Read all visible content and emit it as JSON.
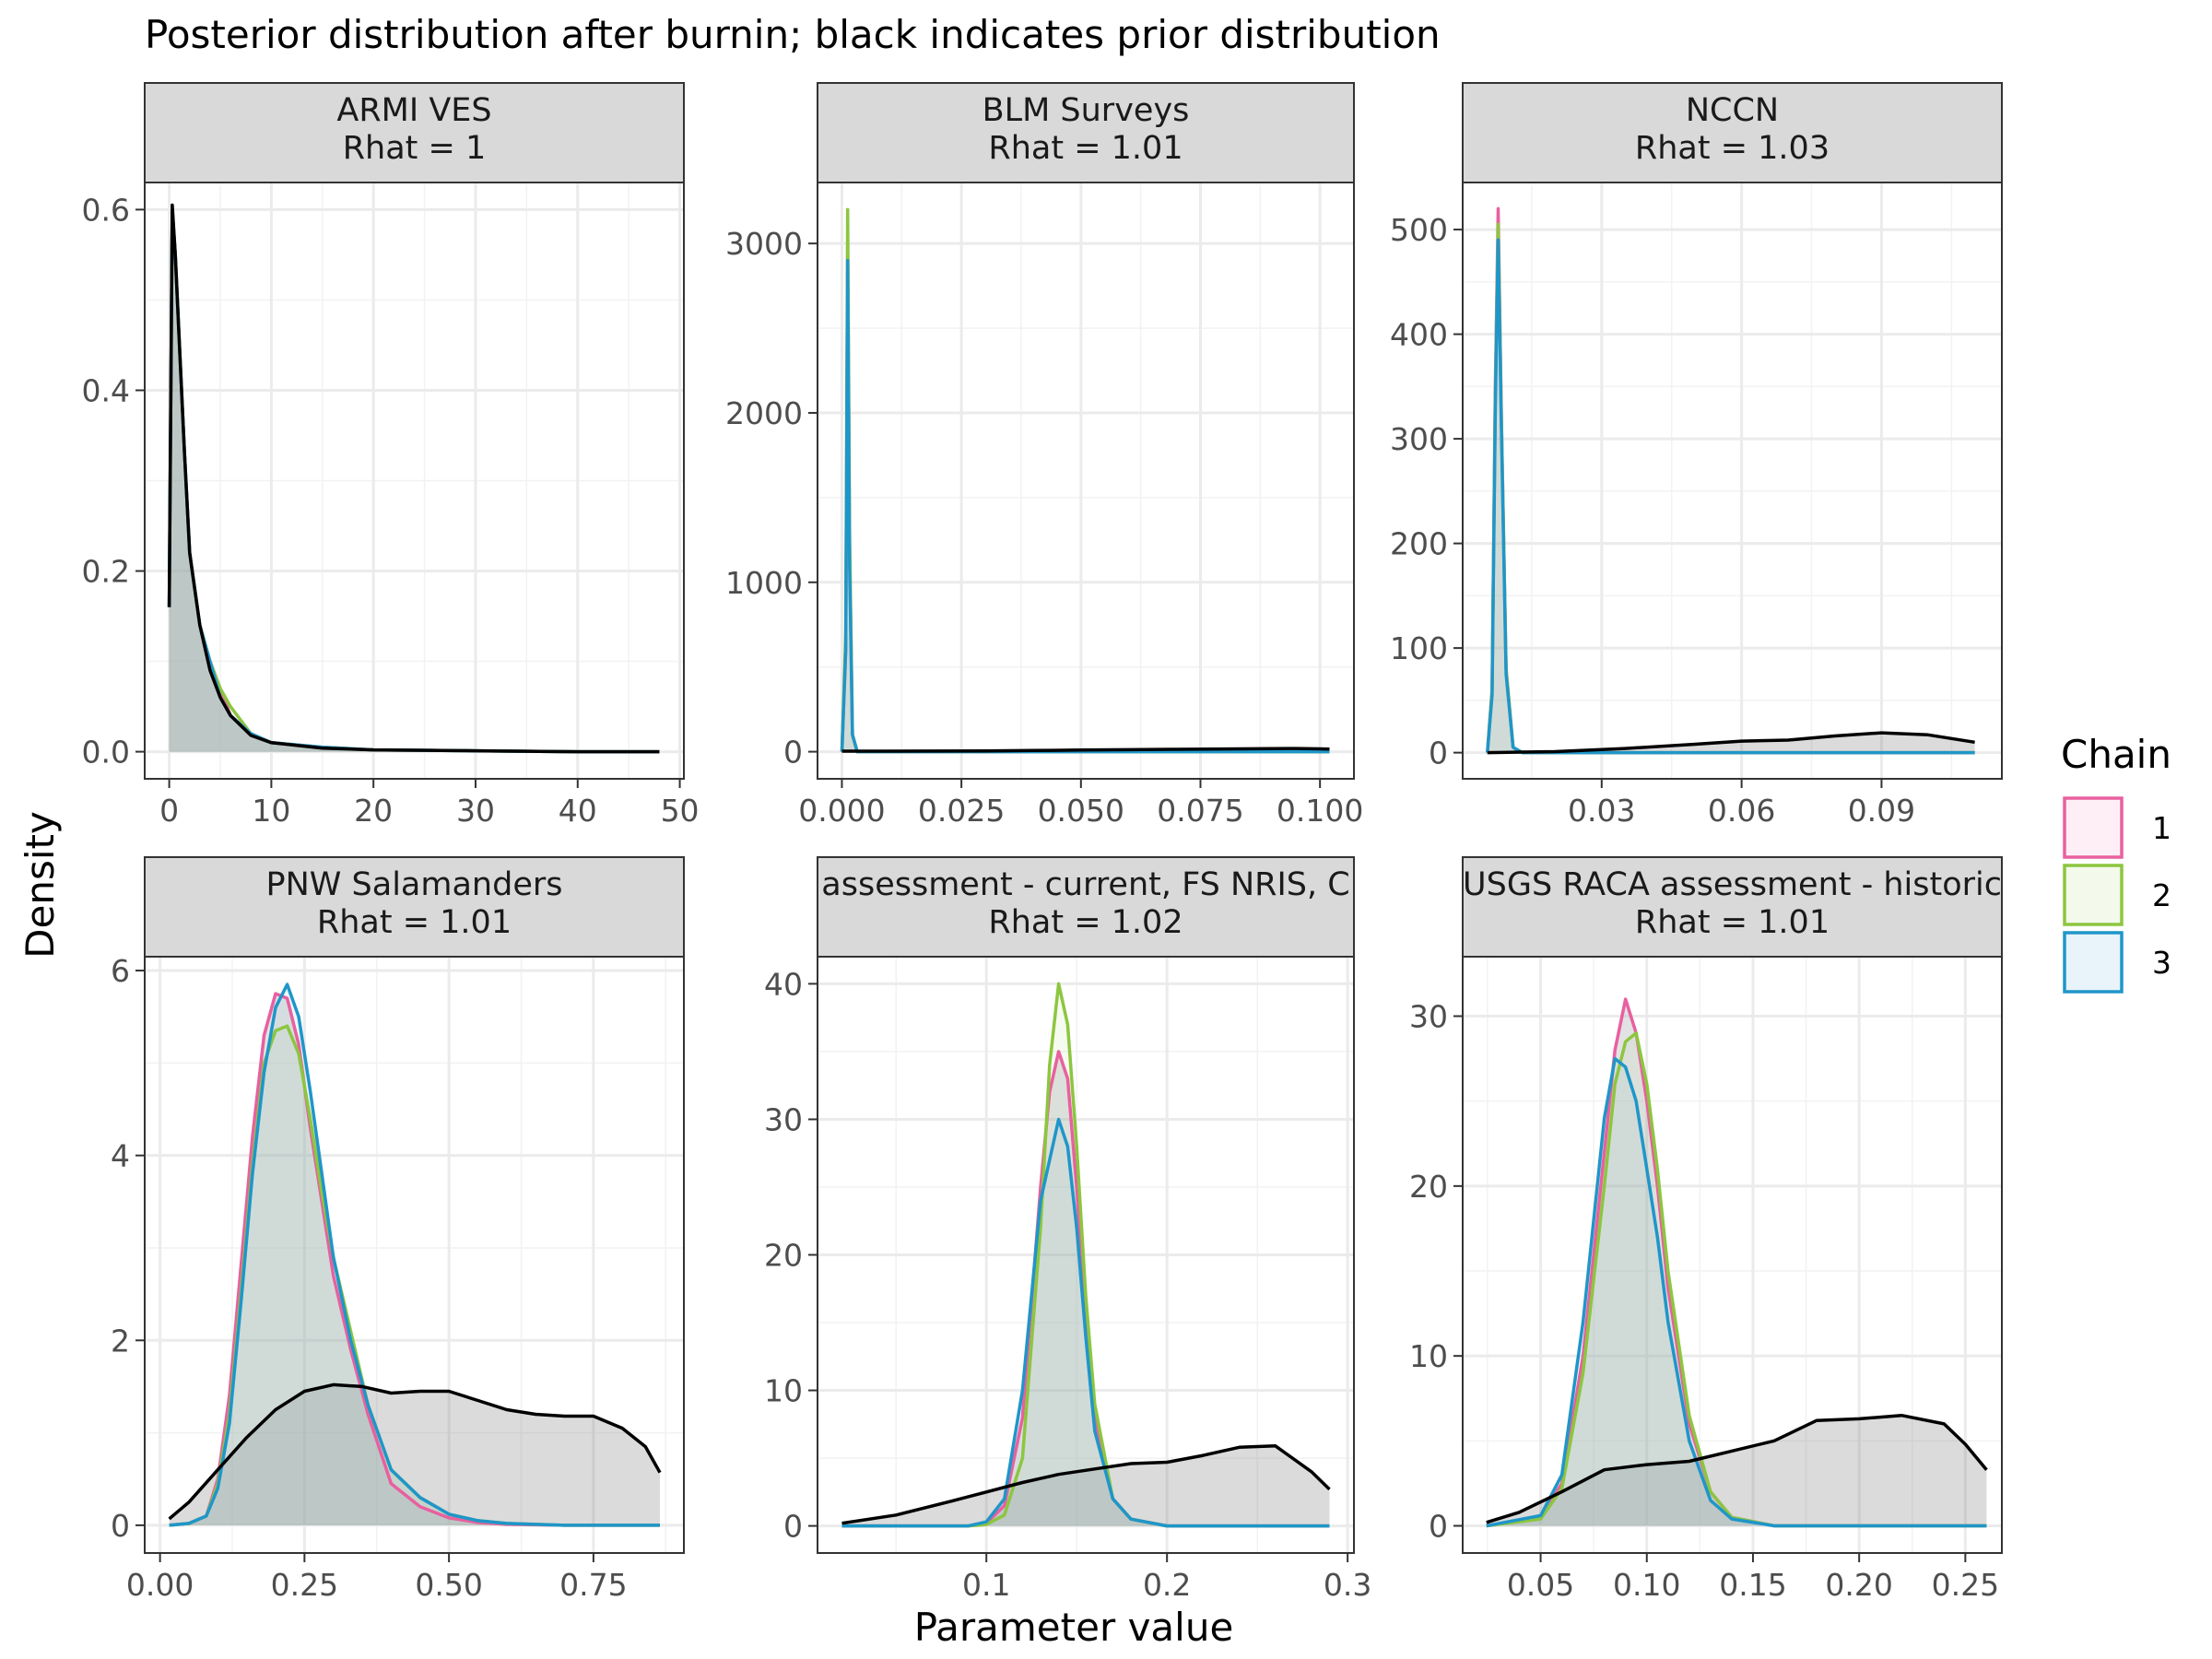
{
  "title": "Posterior distribution after burnin; black indicates prior distribution",
  "xlabel": "Parameter value",
  "ylabel": "Density",
  "legend": {
    "title": "Chain",
    "position": "right",
    "items": [
      {
        "label": "1",
        "color": "#E8609F"
      },
      {
        "label": "2",
        "color": "#8CC63F"
      },
      {
        "label": "3",
        "color": "#1F96C9"
      }
    ]
  },
  "prior_color": "#000000",
  "chart_data": [
    {
      "type": "area",
      "strip": "ARMI VES",
      "rhat_label": "Rhat = 1",
      "xlim": [
        -2.4,
        50.4
      ],
      "ylim": [
        -0.03,
        0.63
      ],
      "xticks": [
        0,
        10,
        20,
        30,
        40,
        50
      ],
      "xtick_labels": [
        "0",
        "10",
        "20",
        "30",
        "40",
        "50"
      ],
      "yticks": [
        0,
        0.2,
        0.4,
        0.6
      ],
      "ytick_labels": [
        "0.0",
        "0.2",
        "0.4",
        "0.6"
      ],
      "chains": [
        {
          "name": "1",
          "x": [
            0,
            0.3,
            0.6,
            1,
            1.5,
            2,
            3,
            4,
            5,
            6,
            8,
            10,
            15,
            20,
            30,
            40,
            48
          ],
          "y": [
            0.16,
            0.6,
            0.55,
            0.45,
            0.33,
            0.22,
            0.14,
            0.1,
            0.07,
            0.04,
            0.02,
            0.01,
            0.005,
            0.002,
            0.001,
            0,
            0
          ]
        },
        {
          "name": "2",
          "x": [
            0,
            0.3,
            0.6,
            1,
            1.5,
            2,
            3,
            4,
            5,
            6,
            8,
            10,
            15,
            20,
            30,
            40,
            48
          ],
          "y": [
            0.16,
            0.6,
            0.55,
            0.45,
            0.33,
            0.22,
            0.14,
            0.1,
            0.07,
            0.05,
            0.02,
            0.01,
            0.005,
            0.002,
            0.001,
            0,
            0
          ]
        },
        {
          "name": "3",
          "x": [
            0,
            0.3,
            0.6,
            1,
            1.5,
            2,
            3,
            4,
            5,
            6,
            8,
            10,
            15,
            20,
            30,
            40,
            48
          ],
          "y": [
            0.16,
            0.6,
            0.55,
            0.45,
            0.33,
            0.22,
            0.14,
            0.1,
            0.06,
            0.04,
            0.02,
            0.01,
            0.005,
            0.002,
            0.001,
            0,
            0
          ]
        }
      ],
      "prior": {
        "x": [
          0,
          0.3,
          0.6,
          1,
          1.5,
          2,
          3,
          4,
          5,
          6,
          8,
          10,
          15,
          20,
          30,
          40,
          48
        ],
        "y": [
          0.16,
          0.605,
          0.55,
          0.45,
          0.33,
          0.22,
          0.14,
          0.09,
          0.06,
          0.04,
          0.018,
          0.01,
          0.004,
          0.002,
          0.001,
          0,
          0
        ]
      }
    },
    {
      "type": "area",
      "strip": "BLM Surveys",
      "rhat_label": "Rhat = 1.01",
      "xlim": [
        -0.0051,
        0.1071
      ],
      "ylim": [
        -160,
        3360
      ],
      "xticks": [
        0,
        0.025,
        0.05,
        0.075,
        0.1
      ],
      "xtick_labels": [
        "0.000",
        "0.025",
        "0.050",
        "0.075",
        "0.100"
      ],
      "yticks": [
        0,
        1000,
        2000,
        3000
      ],
      "ytick_labels": [
        "0",
        "1000",
        "2000",
        "3000"
      ],
      "chains": [
        {
          "name": "1",
          "x": [
            0,
            0.0008,
            0.0012,
            0.0016,
            0.0022,
            0.0032,
            0.102
          ],
          "y": [
            0,
            600,
            3000,
            1200,
            100,
            0,
            0
          ]
        },
        {
          "name": "2",
          "x": [
            0,
            0.0008,
            0.0012,
            0.0016,
            0.0022,
            0.0032,
            0.102
          ],
          "y": [
            0,
            700,
            3200,
            1300,
            100,
            0,
            0
          ]
        },
        {
          "name": "3",
          "x": [
            0,
            0.0008,
            0.0012,
            0.0016,
            0.0022,
            0.0032,
            0.102
          ],
          "y": [
            0,
            600,
            2900,
            1100,
            100,
            0,
            0
          ]
        }
      ],
      "prior": {
        "x": [
          0,
          0.01,
          0.02,
          0.03,
          0.04,
          0.05,
          0.06,
          0.07,
          0.08,
          0.09,
          0.095,
          0.1,
          0.102
        ],
        "y": [
          3,
          3,
          4,
          5,
          7,
          10,
          12,
          14,
          16,
          18,
          19,
          17,
          15
        ]
      }
    },
    {
      "type": "area",
      "strip": "NCCN",
      "rhat_label": "Rhat = 1.03",
      "xlim": [
        0.0002,
        0.1158
      ],
      "ylim": [
        -25,
        545
      ],
      "xticks": [
        0.03,
        0.06,
        0.09
      ],
      "xtick_labels": [
        "0.03",
        "0.06",
        "0.09"
      ],
      "yticks": [
        0,
        100,
        200,
        300,
        400,
        500
      ],
      "ytick_labels": [
        "0",
        "100",
        "200",
        "300",
        "400",
        "500"
      ],
      "chains": [
        {
          "name": "1",
          "x": [
            0.0055,
            0.0065,
            0.0072,
            0.0078,
            0.0085,
            0.0095,
            0.011,
            0.013,
            0.11
          ],
          "y": [
            0,
            60,
            350,
            520,
            320,
            80,
            5,
            0,
            0
          ]
        },
        {
          "name": "2",
          "x": [
            0.0055,
            0.0065,
            0.0072,
            0.0078,
            0.0085,
            0.0095,
            0.011,
            0.013,
            0.11
          ],
          "y": [
            0,
            60,
            340,
            505,
            320,
            80,
            5,
            0,
            0
          ]
        },
        {
          "name": "3",
          "x": [
            0.0055,
            0.0065,
            0.0072,
            0.0078,
            0.0085,
            0.0095,
            0.011,
            0.013,
            0.11
          ],
          "y": [
            0,
            55,
            330,
            490,
            310,
            75,
            5,
            0,
            0
          ]
        }
      ],
      "prior": {
        "x": [
          0.0055,
          0.02,
          0.035,
          0.05,
          0.06,
          0.07,
          0.08,
          0.09,
          0.1,
          0.11
        ],
        "y": [
          0,
          1,
          4,
          8,
          11,
          12,
          16,
          19,
          17,
          10
        ]
      }
    },
    {
      "type": "area",
      "strip": "PNW Salamanders",
      "rhat_label": "Rhat = 1.01",
      "xlim": [
        -0.0265,
        0.9065
      ],
      "ylim": [
        -0.3,
        6.15
      ],
      "xticks": [
        0,
        0.25,
        0.5,
        0.75
      ],
      "xtick_labels": [
        "0.00",
        "0.25",
        "0.50",
        "0.75"
      ],
      "yticks": [
        0,
        2,
        4,
        6
      ],
      "ytick_labels": [
        "0",
        "2",
        "4",
        "6"
      ],
      "chains": [
        {
          "name": "1",
          "x": [
            0.016,
            0.05,
            0.08,
            0.1,
            0.12,
            0.14,
            0.16,
            0.18,
            0.2,
            0.22,
            0.24,
            0.26,
            0.28,
            0.3,
            0.33,
            0.36,
            0.4,
            0.45,
            0.5,
            0.55,
            0.6,
            0.7,
            0.8,
            0.865
          ],
          "y": [
            0,
            0.02,
            0.1,
            0.5,
            1.4,
            2.8,
            4.2,
            5.3,
            5.75,
            5.7,
            5.2,
            4.3,
            3.5,
            2.7,
            1.9,
            1.2,
            0.45,
            0.2,
            0.08,
            0.03,
            0.01,
            0,
            0,
            0
          ]
        },
        {
          "name": "2",
          "x": [
            0.016,
            0.05,
            0.08,
            0.1,
            0.12,
            0.14,
            0.16,
            0.18,
            0.2,
            0.22,
            0.24,
            0.26,
            0.28,
            0.3,
            0.33,
            0.36,
            0.4,
            0.45,
            0.5,
            0.55,
            0.6,
            0.7,
            0.8,
            0.865
          ],
          "y": [
            0,
            0.02,
            0.1,
            0.45,
            1.2,
            2.5,
            3.9,
            5.0,
            5.35,
            5.4,
            5.1,
            4.4,
            3.6,
            2.9,
            2.1,
            1.3,
            0.6,
            0.3,
            0.12,
            0.05,
            0.02,
            0,
            0,
            0
          ]
        },
        {
          "name": "3",
          "x": [
            0.016,
            0.05,
            0.08,
            0.1,
            0.12,
            0.14,
            0.16,
            0.18,
            0.2,
            0.22,
            0.24,
            0.26,
            0.28,
            0.3,
            0.33,
            0.36,
            0.4,
            0.45,
            0.5,
            0.55,
            0.6,
            0.7,
            0.8,
            0.865
          ],
          "y": [
            0,
            0.02,
            0.1,
            0.4,
            1.1,
            2.4,
            3.8,
            4.9,
            5.6,
            5.85,
            5.5,
            4.7,
            3.8,
            2.9,
            2.0,
            1.3,
            0.6,
            0.3,
            0.12,
            0.05,
            0.02,
            0,
            0,
            0
          ]
        }
      ],
      "prior": {
        "x": [
          0.016,
          0.05,
          0.1,
          0.15,
          0.2,
          0.25,
          0.3,
          0.35,
          0.4,
          0.45,
          0.5,
          0.55,
          0.6,
          0.65,
          0.7,
          0.75,
          0.8,
          0.84,
          0.865
        ],
        "y": [
          0.07,
          0.25,
          0.6,
          0.95,
          1.25,
          1.45,
          1.52,
          1.5,
          1.43,
          1.45,
          1.45,
          1.35,
          1.25,
          1.2,
          1.18,
          1.18,
          1.05,
          0.85,
          0.57
        ]
      }
    },
    {
      "type": "area",
      "strip": "USGS RACA assessment - current, FS NRIS, CNHP",
      "strip_visible": "assessment - current, FS NRIS, C",
      "rhat_label": "Rhat = 1.02",
      "xlim": [
        0.0065,
        0.3035
      ],
      "ylim": [
        -2.0,
        42.0
      ],
      "xticks": [
        0.1,
        0.2,
        0.3
      ],
      "xtick_labels": [
        "0.1",
        "0.2",
        "0.3"
      ],
      "yticks": [
        0,
        10,
        20,
        30,
        40
      ],
      "ytick_labels": [
        "0",
        "10",
        "20",
        "30",
        "40"
      ],
      "chains": [
        {
          "name": "1",
          "x": [
            0.02,
            0.09,
            0.1,
            0.11,
            0.12,
            0.13,
            0.135,
            0.14,
            0.145,
            0.15,
            0.155,
            0.16,
            0.17,
            0.18,
            0.2,
            0.29
          ],
          "y": [
            0,
            0,
            0.2,
            1.5,
            8,
            25,
            32,
            35,
            33,
            25,
            15,
            8,
            2,
            0.5,
            0,
            0
          ]
        },
        {
          "name": "2",
          "x": [
            0.02,
            0.09,
            0.1,
            0.11,
            0.12,
            0.13,
            0.135,
            0.14,
            0.145,
            0.15,
            0.155,
            0.16,
            0.17,
            0.18,
            0.2,
            0.29
          ],
          "y": [
            0,
            0,
            0.1,
            0.8,
            5,
            22,
            34,
            40,
            37,
            28,
            17,
            9,
            2,
            0.5,
            0,
            0
          ]
        },
        {
          "name": "3",
          "x": [
            0.02,
            0.09,
            0.1,
            0.11,
            0.12,
            0.13,
            0.135,
            0.14,
            0.145,
            0.15,
            0.155,
            0.16,
            0.17,
            0.18,
            0.2,
            0.29
          ],
          "y": [
            0,
            0,
            0.3,
            2,
            10,
            24,
            27,
            30,
            28,
            22,
            14,
            7,
            2,
            0.5,
            0,
            0
          ]
        }
      ],
      "prior": {
        "x": [
          0.02,
          0.05,
          0.08,
          0.1,
          0.12,
          0.14,
          0.16,
          0.18,
          0.2,
          0.22,
          0.24,
          0.26,
          0.28,
          0.29
        ],
        "y": [
          0.2,
          0.8,
          1.8,
          2.5,
          3.2,
          3.8,
          4.2,
          4.6,
          4.7,
          5.2,
          5.8,
          5.9,
          4.0,
          2.7
        ]
      }
    },
    {
      "type": "area",
      "strip": "USGS RACA assessment - historic",
      "strip_visible": "USGS RACA assessment - historic",
      "rhat_label": "Rhat = 1.01",
      "xlim": [
        0.0133,
        0.2672
      ],
      "ylim": [
        -1.6,
        33.5
      ],
      "xticks": [
        0.05,
        0.1,
        0.15,
        0.2,
        0.25
      ],
      "xtick_labels": [
        "0.05",
        "0.10",
        "0.15",
        "0.20",
        "0.25"
      ],
      "yticks": [
        0,
        10,
        20,
        30
      ],
      "ytick_labels": [
        "0",
        "10",
        "20",
        "30"
      ],
      "chains": [
        {
          "name": "1",
          "x": [
            0.0245,
            0.05,
            0.06,
            0.07,
            0.08,
            0.085,
            0.09,
            0.095,
            0.1,
            0.105,
            0.11,
            0.12,
            0.13,
            0.14,
            0.16,
            0.26
          ],
          "y": [
            0,
            0.5,
            2.5,
            10,
            22,
            28,
            31,
            29,
            25,
            20,
            14,
            6,
            2,
            0.5,
            0,
            0
          ]
        },
        {
          "name": "2",
          "x": [
            0.0245,
            0.05,
            0.06,
            0.07,
            0.08,
            0.085,
            0.09,
            0.095,
            0.1,
            0.105,
            0.11,
            0.12,
            0.13,
            0.14,
            0.16,
            0.26
          ],
          "y": [
            0,
            0.4,
            2.2,
            9,
            20,
            26,
            28.5,
            29,
            26,
            21,
            15,
            6.5,
            2,
            0.5,
            0,
            0
          ]
        },
        {
          "name": "3",
          "x": [
            0.0245,
            0.05,
            0.06,
            0.07,
            0.08,
            0.085,
            0.09,
            0.095,
            0.1,
            0.105,
            0.11,
            0.12,
            0.13,
            0.14,
            0.16,
            0.26
          ],
          "y": [
            0,
            0.6,
            3,
            12,
            24,
            27.5,
            27,
            25,
            21,
            17,
            12,
            5,
            1.5,
            0.4,
            0,
            0
          ]
        }
      ],
      "prior": {
        "x": [
          0.0245,
          0.04,
          0.06,
          0.08,
          0.1,
          0.12,
          0.14,
          0.16,
          0.18,
          0.2,
          0.22,
          0.24,
          0.25,
          0.26
        ],
        "y": [
          0.2,
          0.8,
          2.0,
          3.3,
          3.6,
          3.8,
          4.4,
          5.0,
          6.2,
          6.3,
          6.5,
          6.0,
          4.8,
          3.3
        ]
      }
    }
  ]
}
